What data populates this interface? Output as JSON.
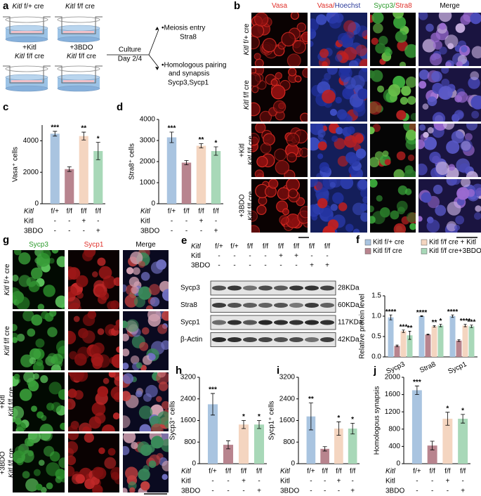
{
  "panel_labels": {
    "a": "a",
    "b": "b",
    "c": "c",
    "d": "d",
    "e": "e",
    "f": "f",
    "g": "g",
    "h": "h",
    "i": "i",
    "j": "j"
  },
  "schematic": {
    "conditions": [
      {
        "gene": "Kitl",
        "genotype": "f/+ cre"
      },
      {
        "gene": "Kitl",
        "genotype": "f/f cre"
      },
      {
        "prefix": "+Kitl",
        "gene": "Kitl",
        "genotype": "f/f cre"
      },
      {
        "prefix": "+3BDO",
        "gene": "Kitl",
        "genotype": "f/f cre"
      }
    ],
    "culture": [
      "Culture",
      "Day 2/4"
    ],
    "outcomes": [
      {
        "lines": [
          "•Meiosis entry"
        ],
        "markers": "Stra8"
      },
      {
        "lines": [
          "•Homologous pairing",
          "and synapsis"
        ],
        "markers": "Sycp3,Sycp1"
      }
    ]
  },
  "immunofluorescence_b": {
    "columns": [
      [
        {
          "text": "Vasa",
          "color": "#e0302a"
        }
      ],
      [
        {
          "text": "Vasa",
          "color": "#e0302a"
        },
        {
          "text": "/",
          "color": "#e0302a"
        },
        {
          "text": "Hoechst",
          "color": "#2a3a9a"
        }
      ],
      [
        {
          "text": "Sycp3",
          "color": "#2a9a2a"
        },
        {
          "text": "/",
          "color": "#2a9a2a"
        },
        {
          "text": "Stra8",
          "color": "#e0302a"
        }
      ],
      [
        {
          "text": "Merge",
          "color": "#000000"
        }
      ]
    ],
    "rows": [
      {
        "gene": "Kitl",
        "genotype": "f/+ cre"
      },
      {
        "gene": "Kitl",
        "genotype": "f/f cre"
      },
      {
        "prefix": "+Kitl",
        "gene": "Kitl",
        "genotype": "f/f cre"
      },
      {
        "prefix": "+3BDO",
        "gene": "Kitl",
        "genotype": "f/f cre"
      }
    ]
  },
  "immunofluorescence_g": {
    "columns": [
      [
        {
          "text": "Sycp3",
          "color": "#2a9a2a"
        }
      ],
      [
        {
          "text": "Sycp1",
          "color": "#e0302a"
        }
      ],
      [
        {
          "text": "Merge",
          "color": "#000000"
        }
      ]
    ],
    "rows": [
      {
        "gene": "Kitl",
        "genotype": "f/+ cre"
      },
      {
        "gene": "Kitl",
        "genotype": "f/f cre"
      },
      {
        "prefix": "+Kitl",
        "gene": "Kitl",
        "genotype": "f/f cre"
      },
      {
        "prefix": "+3BDO",
        "gene": "Kitl",
        "genotype": "f/f cre"
      }
    ]
  },
  "western_blot": {
    "header_rows": [
      {
        "label": "Kitl",
        "values": [
          "f/+",
          "f/+",
          "f/f",
          "f/f",
          "f/f",
          "f/f",
          "f/f",
          "f/f"
        ]
      },
      {
        "label": "Kitl",
        "values": [
          "-",
          "-",
          "-",
          "-",
          "+",
          "+",
          "-",
          "-"
        ]
      },
      {
        "label": "3BDO",
        "values": [
          "-",
          "-",
          "-",
          "-",
          "-",
          "-",
          "+",
          "+"
        ]
      }
    ],
    "bands": [
      {
        "protein": "Sycp3",
        "size": "28KDa"
      },
      {
        "protein": "Stra8",
        "size": "60KDa"
      },
      {
        "protein": "Sycp1",
        "size": "117KDa"
      },
      {
        "protein": "β-Actin",
        "size": "42KDa"
      }
    ]
  },
  "chart_data": [
    {
      "type": "bar",
      "ylabel": "Vasa⁺ cells",
      "category_label": "Kitl",
      "categories": [
        "f/+",
        "f/f",
        "f/f",
        "f/f"
      ],
      "condition_rows": [
        {
          "label": "Kitl",
          "values": [
            "-",
            "-",
            "+",
            "-"
          ]
        },
        {
          "label": "3BDO",
          "values": [
            "-",
            "-",
            "-",
            "+"
          ]
        }
      ],
      "values": [
        4450,
        2200,
        4300,
        3350
      ],
      "errors": [
        150,
        150,
        250,
        550
      ],
      "significance": [
        "***",
        null,
        "**",
        "*"
      ],
      "colors": [
        "#a9c4e0",
        "#b8848e",
        "#f4d5c0",
        "#a8d8b8"
      ],
      "ylim": [
        0,
        5000
      ],
      "yticks": [
        0,
        2000,
        4000
      ]
    },
    {
      "type": "bar",
      "ylabel": "Stra8⁺ cells",
      "category_label": "Kitl",
      "categories": [
        "f/+",
        "f/f",
        "f/f",
        "f/f"
      ],
      "condition_rows": [
        {
          "label": "Kitl",
          "values": [
            "-",
            "-",
            "+",
            "-"
          ]
        },
        {
          "label": "3BDO",
          "values": [
            "-",
            "-",
            "-",
            "+"
          ]
        }
      ],
      "values": [
        3150,
        1950,
        2750,
        2500
      ],
      "errors": [
        250,
        100,
        100,
        200
      ],
      "significance": [
        "***",
        null,
        "**",
        "*"
      ],
      "colors": [
        "#a9c4e0",
        "#b8848e",
        "#f4d5c0",
        "#a8d8b8"
      ],
      "ylim": [
        0,
        4000
      ],
      "yticks": [
        0,
        1000,
        2000,
        3000,
        4000
      ]
    },
    {
      "type": "grouped_bar",
      "ylabel": "Relative protein level",
      "categories": [
        "Sycp3",
        "Stra8",
        "Sycp1"
      ],
      "series": [
        {
          "name": "Kitl f/+ cre",
          "color": "#a9c4e0",
          "values": [
            0.97,
            1.0,
            1.0
          ],
          "errors": [
            0.06,
            0.01,
            0.03
          ],
          "significance": [
            "****",
            "****",
            "****"
          ]
        },
        {
          "name": "Kitl f/f cre",
          "color": "#b8848e",
          "values": [
            0.27,
            0.55,
            0.4
          ],
          "errors": [
            0.02,
            0.01,
            0.02
          ]
        },
        {
          "name": "Kitl f/f cre + Kitl",
          "color": "#f4d5c0",
          "values": [
            0.63,
            0.75,
            0.77
          ],
          "errors": [
            0.03,
            0.02,
            0.03
          ],
          "significance": [
            "***",
            "**",
            "****"
          ]
        },
        {
          "name": "Kitl f/f cre+3BDO",
          "color": "#a8d8b8",
          "values": [
            0.53,
            0.77,
            0.75
          ],
          "errors": [
            0.1,
            0.03,
            0.03
          ],
          "significance": [
            "**",
            "*",
            "***"
          ]
        }
      ],
      "ylim": [
        0,
        1.5
      ],
      "yticks": [
        {
          "value": 0,
          "label": "0.0"
        },
        0.5,
        {
          "value": 1,
          "label": "1.0"
        },
        1.5
      ],
      "legend": "top"
    },
    {
      "type": "bar",
      "ylabel": "Sycp3⁺ cells",
      "category_label": "Kitl",
      "categories": [
        "f/+",
        "f/f",
        "f/f",
        "f/f"
      ],
      "condition_rows": [
        {
          "label": "Kitl",
          "values": [
            "-",
            "-",
            "+",
            "-"
          ]
        },
        {
          "label": "3BDO",
          "values": [
            "-",
            "-",
            "-",
            "+"
          ]
        }
      ],
      "values": [
        2200,
        700,
        1450,
        1450
      ],
      "errors": [
        400,
        150,
        150,
        150
      ],
      "significance": [
        "***",
        null,
        "*",
        "*"
      ],
      "colors": [
        "#a9c4e0",
        "#b8848e",
        "#f4d5c0",
        "#a8d8b8"
      ],
      "ylim": [
        0,
        3200
      ],
      "yticks": [
        0,
        800,
        1600,
        2400,
        3200
      ]
    },
    {
      "type": "bar",
      "ylabel": "Sycp1⁺ cells",
      "category_label": "Kitl",
      "categories": [
        "f/+",
        "f/f",
        "f/f",
        "f/f"
      ],
      "condition_rows": [
        {
          "label": "Kitl",
          "values": [
            "-",
            "-",
            "+",
            "-"
          ]
        },
        {
          "label": "3BDO",
          "values": [
            "-",
            "-",
            "-",
            "+"
          ]
        }
      ],
      "values": [
        1750,
        550,
        1300,
        1300
      ],
      "errors": [
        500,
        80,
        250,
        200
      ],
      "significance": [
        "**",
        null,
        "*",
        "*"
      ],
      "colors": [
        "#a9c4e0",
        "#b8848e",
        "#f4d5c0",
        "#a8d8b8"
      ],
      "ylim": [
        0,
        3200
      ],
      "yticks": [
        0,
        800,
        1600,
        2400,
        3200
      ]
    },
    {
      "type": "bar",
      "ylabel": "Homologous synapsis",
      "category_label": "Kitl",
      "categories": [
        "f/+",
        "f/f",
        "f/f",
        "f/f"
      ],
      "condition_rows": [
        {
          "label": "Kitl",
          "values": [
            "-",
            "-",
            "+",
            "-"
          ]
        },
        {
          "label": "3BDO",
          "values": [
            "-",
            "-",
            "-",
            "+"
          ]
        }
      ],
      "values": [
        1700,
        420,
        1040,
        1040
      ],
      "errors": [
        100,
        100,
        150,
        100
      ],
      "significance": [
        "***",
        null,
        "*",
        "*"
      ],
      "colors": [
        "#a9c4e0",
        "#b8848e",
        "#f4d5c0",
        "#a8d8b8"
      ],
      "ylim": [
        0,
        2000
      ],
      "yticks": [
        0,
        400,
        800,
        1200,
        1600,
        2000
      ]
    }
  ]
}
